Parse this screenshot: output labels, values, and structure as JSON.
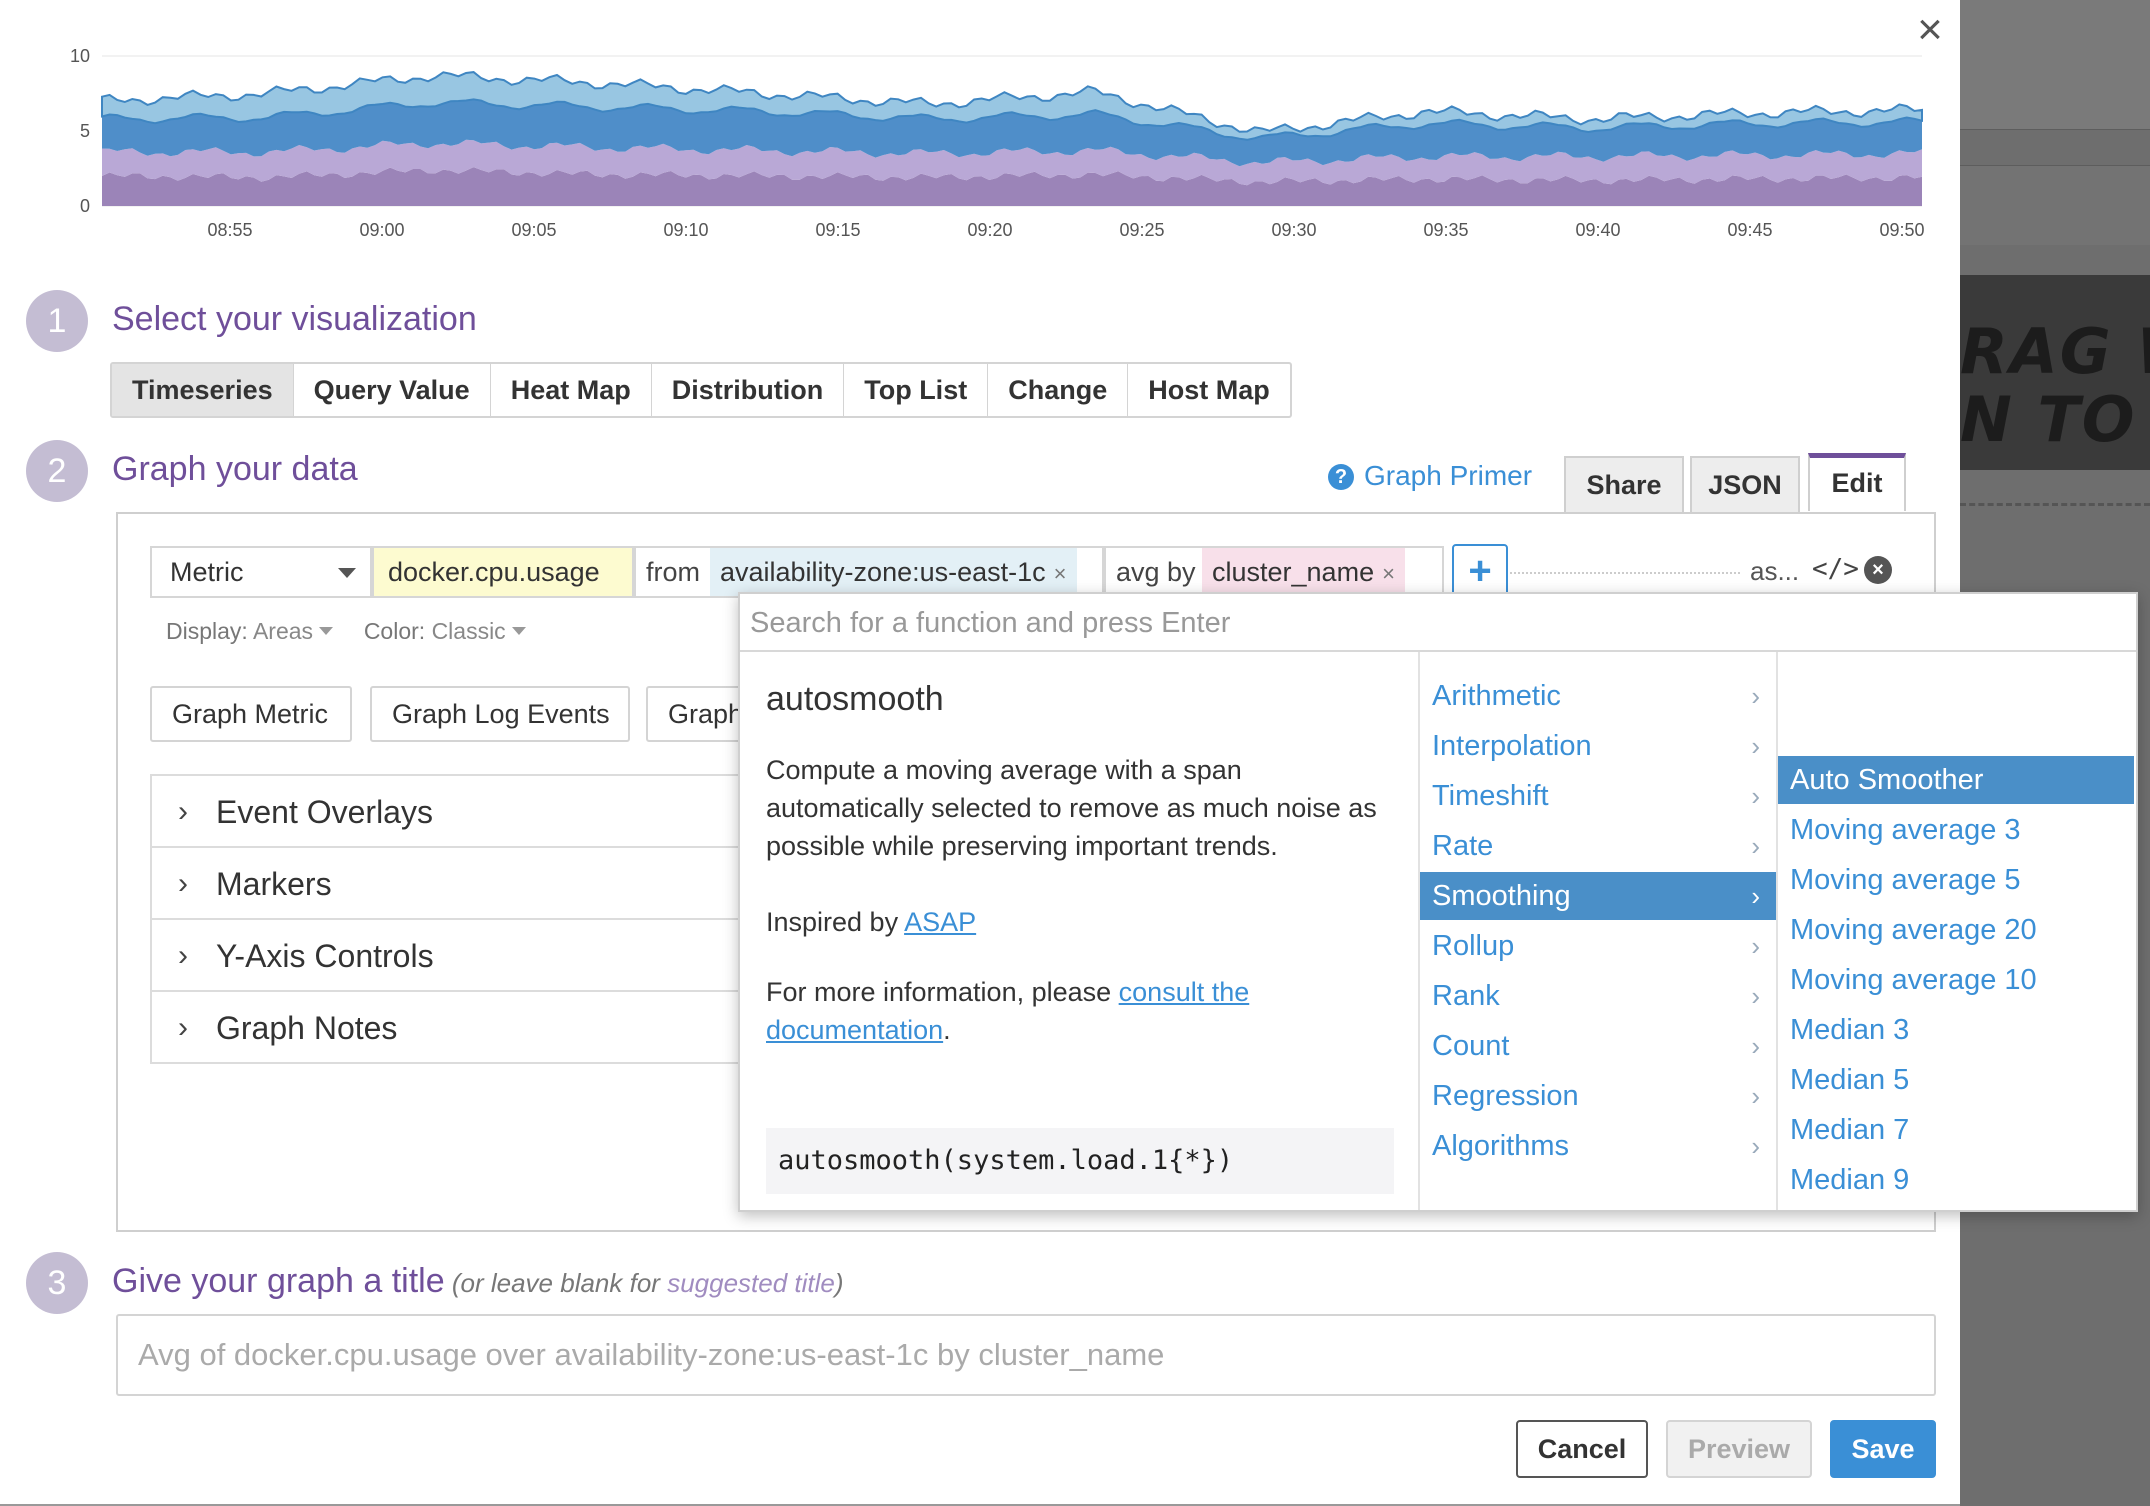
{
  "modal": {
    "close_glyph": "×"
  },
  "chart_data": {
    "type": "area",
    "stacked": true,
    "x": [
      "08:55",
      "09:00",
      "09:05",
      "09:10",
      "09:15",
      "09:20",
      "09:25",
      "09:30",
      "09:35",
      "09:40",
      "09:45",
      "09:50"
    ],
    "yticks": [
      "0",
      "5",
      "10"
    ],
    "ylim": [
      0,
      10
    ],
    "series": [
      {
        "color": "#9b84b8",
        "values": [
          2.0,
          1.9,
          2.4,
          2.1,
          2.0,
          1.9,
          2.1,
          1.6,
          1.8,
          1.7,
          1.8,
          1.9
        ]
      },
      {
        "color": "#b9a8d6",
        "values": [
          1.6,
          1.7,
          1.8,
          1.8,
          1.7,
          1.6,
          1.6,
          1.3,
          1.5,
          1.6,
          1.6,
          1.6
        ]
      },
      {
        "color": "#4f8ec9",
        "values": [
          2.2,
          2.3,
          2.7,
          2.7,
          2.6,
          2.3,
          2.4,
          1.6,
          2.2,
          1.9,
          2.1,
          2.1
        ]
      },
      {
        "color": "#98c6e2",
        "values": [
          1.2,
          1.6,
          1.8,
          1.6,
          1.2,
          1.0,
          1.5,
          0.4,
          0.8,
          0.6,
          0.7,
          0.8
        ]
      }
    ],
    "grid": "horizontal"
  },
  "step1": {
    "number": "1",
    "title": "Select your visualization"
  },
  "viz_tabs": [
    "Timeseries",
    "Query Value",
    "Heat Map",
    "Distribution",
    "Top List",
    "Change",
    "Host Map"
  ],
  "step2": {
    "number": "2",
    "title": "Graph your data"
  },
  "primer": {
    "icon": "?",
    "label": "Graph Primer"
  },
  "edit_tabs": {
    "share": "Share",
    "json": "JSON",
    "edit": "Edit"
  },
  "query": {
    "type": "Metric",
    "metric": "docker.cpu.usage",
    "from_label": "from",
    "from_tag": "availability-zone:us-east-1c",
    "avg_label": "avg by",
    "avg_tag": "cluster_name",
    "tag_remove": "×",
    "plus": "+",
    "as": "as...",
    "code": "</>",
    "remove": "×"
  },
  "display": {
    "display_label": "Display:",
    "display_value": "Areas",
    "color_label": "Color:",
    "color_value": "Classic"
  },
  "graph_buttons": [
    "Graph Metric",
    "Graph Log Events",
    "Graph"
  ],
  "accordion": [
    "Event Overlays",
    "Markers",
    "Y-Axis Controls",
    "Graph Notes"
  ],
  "dropdown": {
    "search_placeholder": "Search for a function and press Enter",
    "function_name": "autosmooth",
    "description": "Compute a moving average with a span automatically selected to remove as much noise as possible while preserving important trends.",
    "inspired_label": "Inspired by ",
    "inspired_link": "ASAP",
    "more_info_label": "For more information, please ",
    "more_info_link": "consult the documentation",
    "more_info_end": ".",
    "example": "autosmooth(system.load.1{*})",
    "categories": [
      "Arithmetic",
      "Interpolation",
      "Timeshift",
      "Rate",
      "Smoothing",
      "Rollup",
      "Rank",
      "Count",
      "Regression",
      "Algorithms"
    ],
    "active_category": "Smoothing",
    "subitems": [
      "Auto Smoother",
      "Moving average 3",
      "Moving average 5",
      "Moving average 20",
      "Moving average 10",
      "Median 3",
      "Median 5",
      "Median 7",
      "Median 9"
    ],
    "active_subitem": "Auto Smoother"
  },
  "step3": {
    "number": "3",
    "title": "Give your graph a title",
    "sub_open": " (or leave blank for ",
    "sub_hint": "suggested title",
    "sub_close": ")"
  },
  "title_input": {
    "placeholder": "Avg of docker.cpu.usage over availability-zone:us-east-1c by cluster_name"
  },
  "footer": {
    "cancel": "Cancel",
    "preview": "Preview",
    "save": "Save"
  },
  "background": {
    "drag_line1": "RAG W",
    "drag_line2": "N TO B"
  }
}
